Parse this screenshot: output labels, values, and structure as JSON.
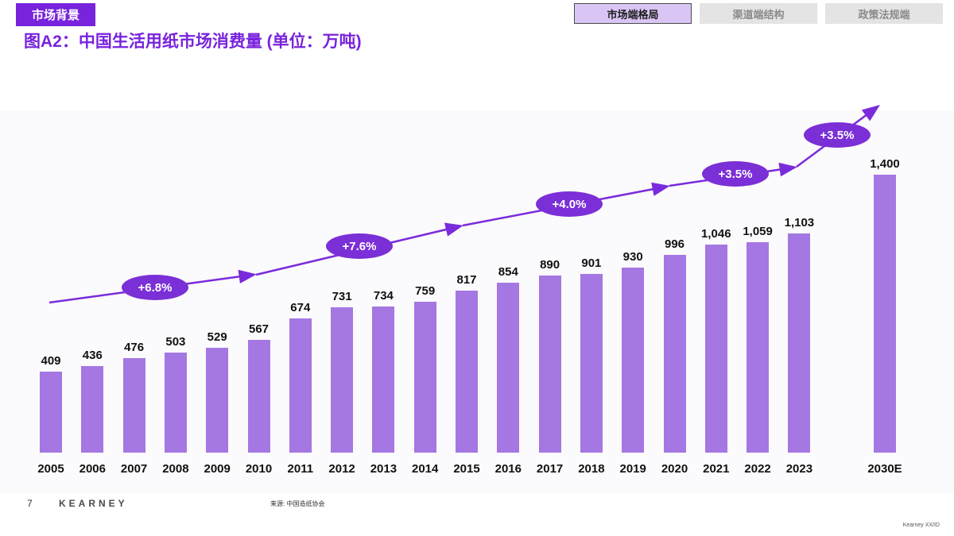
{
  "header": {
    "section_badge": "市场背景",
    "title": "图A2：中国生活用纸市场消费量 (单位：万吨)",
    "tabs": [
      {
        "label": "市场端格局",
        "active": true
      },
      {
        "label": "渠道端结构",
        "active": false
      },
      {
        "label": "政策法规端",
        "active": false
      }
    ]
  },
  "chart_data": {
    "type": "bar",
    "title": "中国生活用纸市场消费量",
    "unit": "万吨",
    "categories": [
      "2005",
      "2006",
      "2007",
      "2008",
      "2009",
      "2010",
      "2011",
      "2012",
      "2013",
      "2014",
      "2015",
      "2016",
      "2017",
      "2018",
      "2019",
      "2020",
      "2021",
      "2022",
      "2023",
      "2030E"
    ],
    "values": [
      409,
      436,
      476,
      503,
      529,
      567,
      674,
      731,
      734,
      759,
      817,
      854,
      890,
      901,
      930,
      996,
      1046,
      1059,
      1103,
      1400
    ],
    "value_labels": true,
    "bar_color": "#A577E2",
    "growth_color": "#7B2FD6",
    "growth_labels": [
      "+6.8%",
      "+7.6%",
      "+4.0%",
      "+3.5%",
      "+3.5%"
    ],
    "ylim": [
      0,
      1400
    ],
    "grid": false,
    "legend": "none"
  },
  "footer": {
    "page_number": "7",
    "brand": "KEARNEY",
    "source": "来源: 中国造纸协会",
    "doc_id": "Kearney XX/ID"
  }
}
